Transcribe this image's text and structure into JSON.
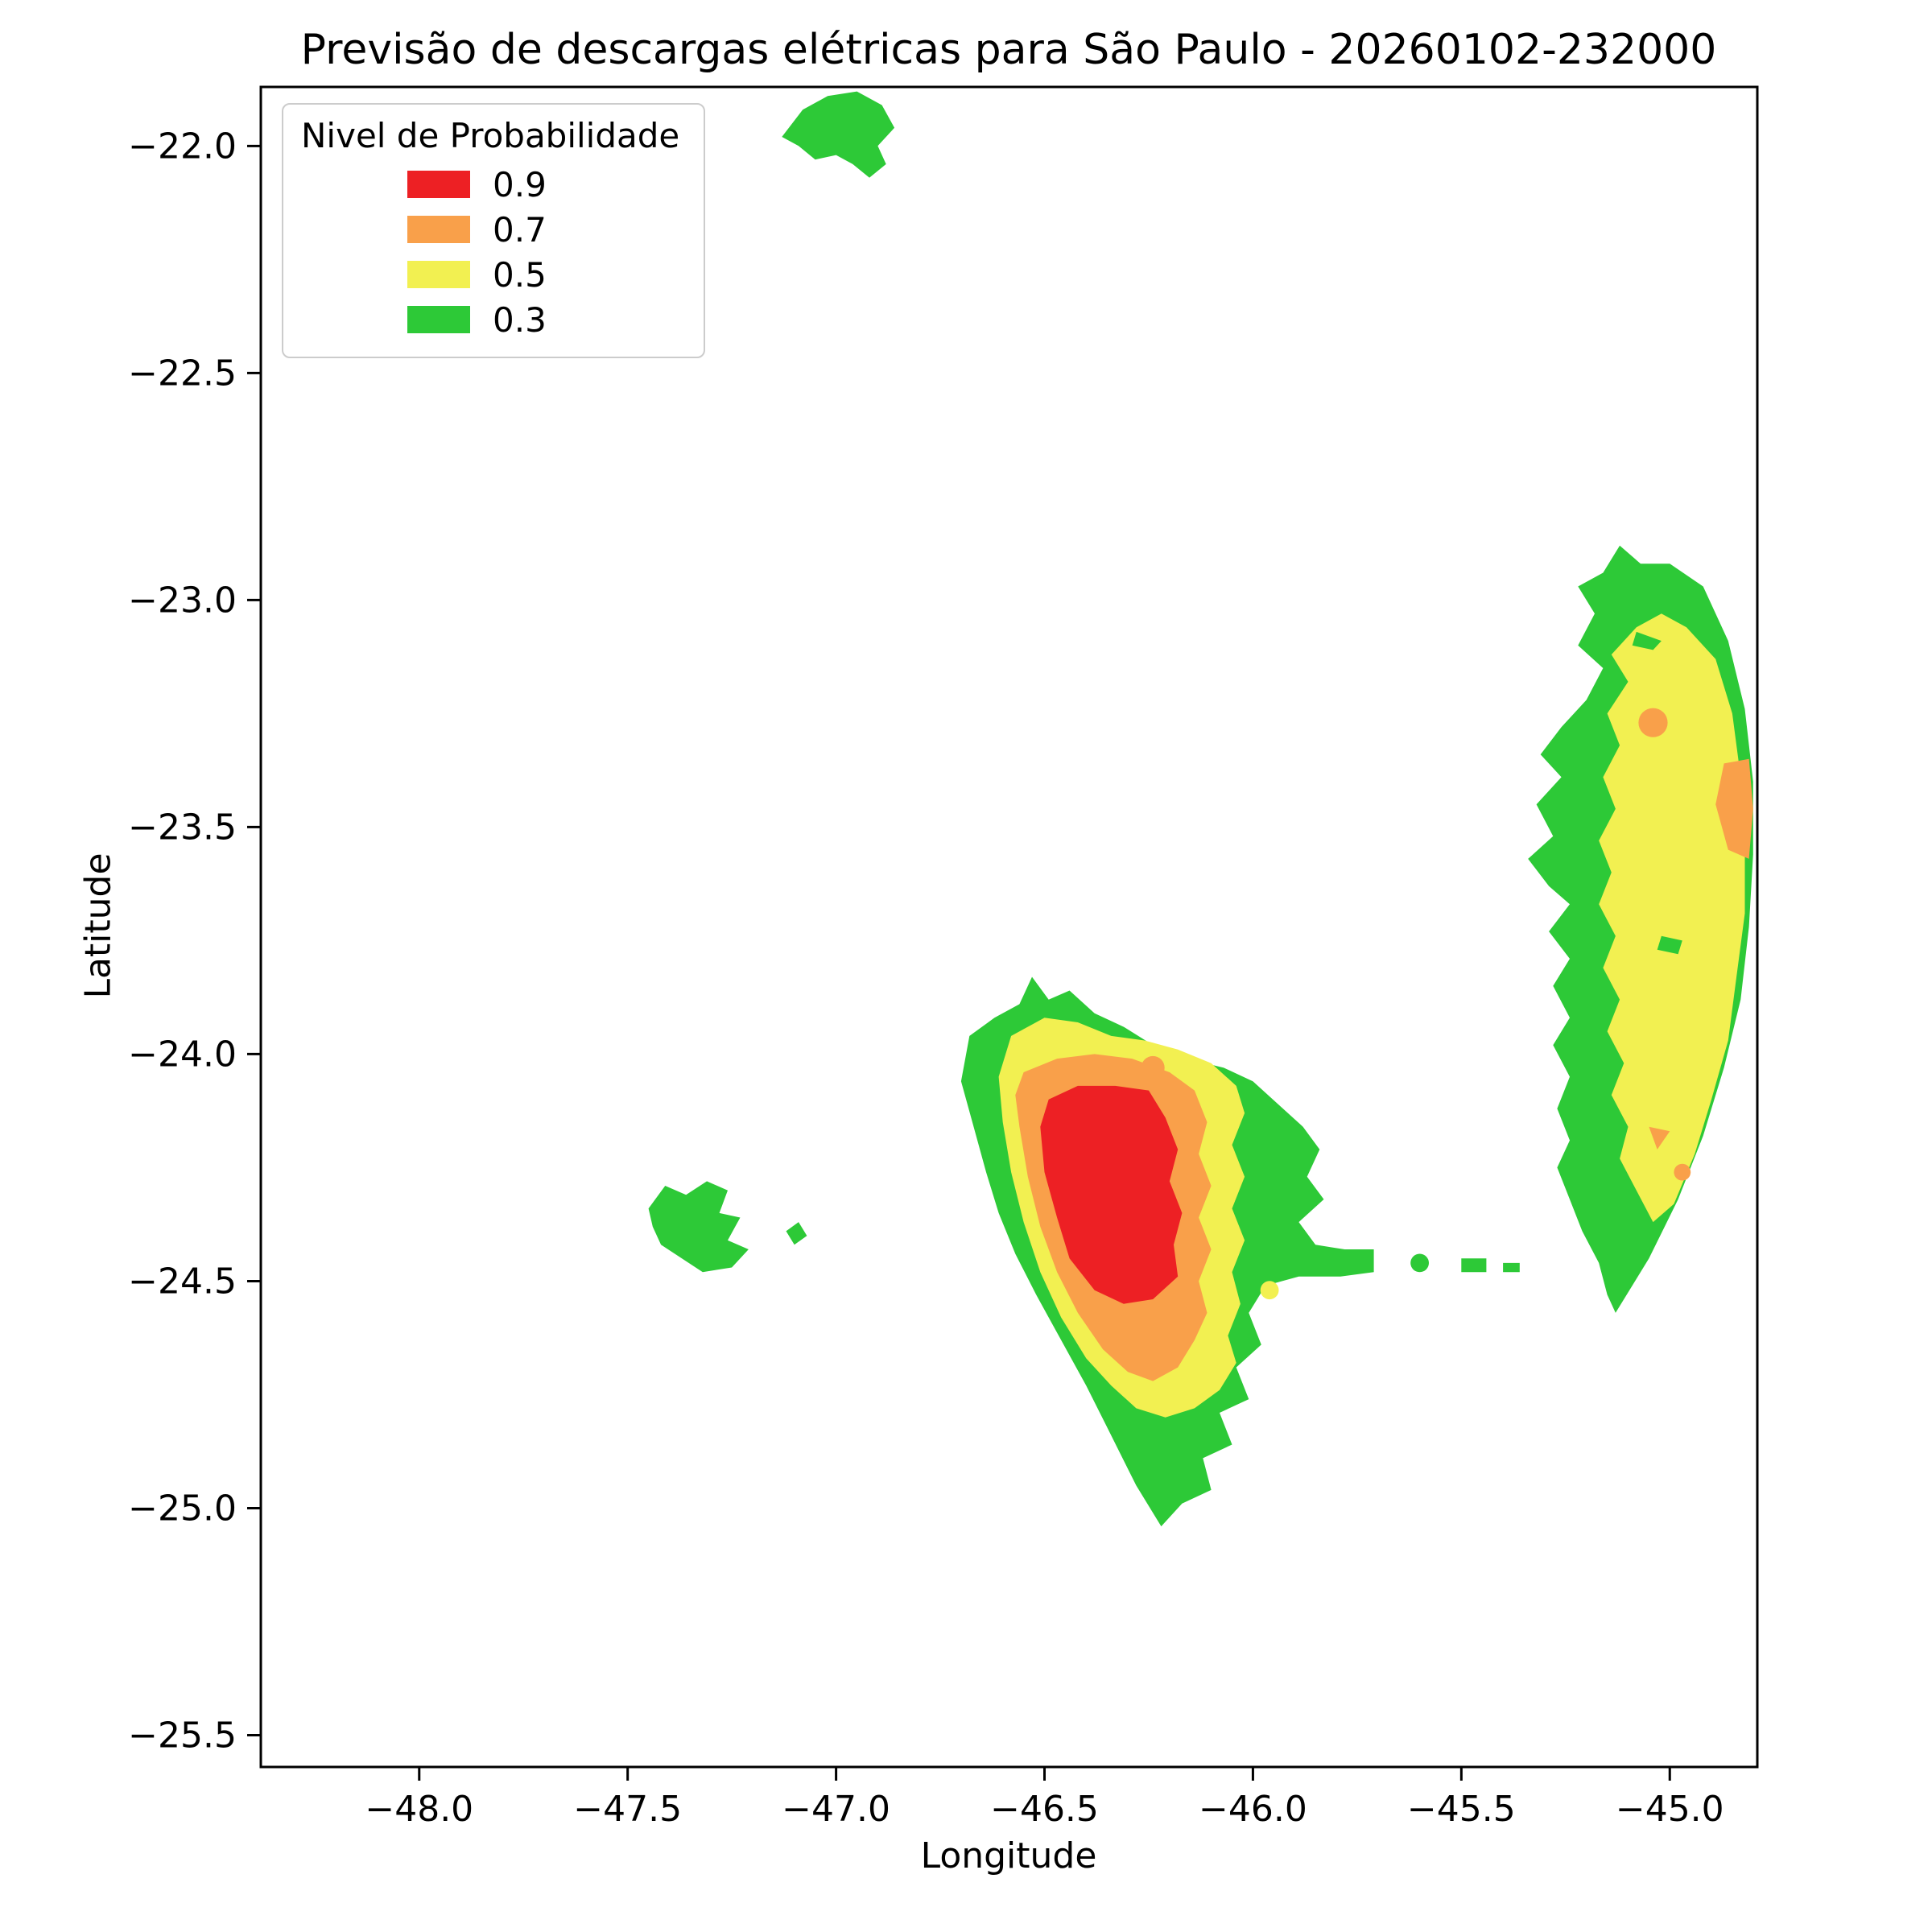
{
  "chart_data": {
    "type": "heatmap",
    "subtype": "filled_contour_map",
    "title": "Previsão de descargas elétricas para São Paulo - 20260102-232000",
    "xlabel": "Longitude",
    "ylabel": "Latitude",
    "xlim": [
      -48.38,
      -44.79
    ],
    "ylim": [
      -25.57,
      -21.87
    ],
    "grid": false,
    "x_ticks": {
      "values": [
        -48.0,
        -47.5,
        -47.0,
        -46.5,
        -46.0,
        -45.5,
        -45.0
      ],
      "labels": [
        "−48.0",
        "−47.5",
        "−47.0",
        "−46.5",
        "−46.0",
        "−45.5",
        "−45.0"
      ]
    },
    "y_ticks": {
      "values": [
        -22.0,
        -22.5,
        -23.0,
        -23.5,
        -24.0,
        -24.5,
        -25.0,
        -25.5
      ],
      "labels": [
        "−22.0",
        "−22.5",
        "−23.0",
        "−23.5",
        "−24.0",
        "−24.5",
        "−25.0",
        "−25.5"
      ]
    },
    "legend": {
      "title": "Nivel de Probabilidade",
      "position": "upper left",
      "items": [
        {
          "label": "0.9",
          "color": "#ed2024"
        },
        {
          "label": "0.7",
          "color": "#f9a04a"
        },
        {
          "label": "0.5",
          "color": "#f2f051"
        },
        {
          "label": "0.3",
          "color": "#2dc937"
        }
      ]
    },
    "probability_levels": [
      0.9,
      0.7,
      0.5,
      0.3
    ],
    "regions": [
      {
        "level": "0.3",
        "shape": "polygon",
        "points": [
          [
            -47.13,
            -21.98
          ],
          [
            -47.08,
            -21.92
          ],
          [
            -47.02,
            -21.89
          ],
          [
            -46.95,
            -21.88
          ],
          [
            -46.89,
            -21.91
          ],
          [
            -46.86,
            -21.96
          ],
          [
            -46.9,
            -22.0
          ],
          [
            -46.88,
            -22.04
          ],
          [
            -46.92,
            -22.07
          ],
          [
            -46.96,
            -22.04
          ],
          [
            -47.0,
            -22.02
          ],
          [
            -47.05,
            -22.03
          ],
          [
            -47.09,
            -22.0
          ]
        ]
      },
      {
        "level": "0.3",
        "shape": "polygon",
        "points": [
          [
            -47.45,
            -24.34
          ],
          [
            -47.41,
            -24.29
          ],
          [
            -47.36,
            -24.31
          ],
          [
            -47.31,
            -24.28
          ],
          [
            -47.26,
            -24.3
          ],
          [
            -47.28,
            -24.35
          ],
          [
            -47.23,
            -24.36
          ],
          [
            -47.26,
            -24.41
          ],
          [
            -47.21,
            -24.43
          ],
          [
            -47.25,
            -24.47
          ],
          [
            -47.32,
            -24.48
          ],
          [
            -47.37,
            -24.45
          ],
          [
            -47.42,
            -24.42
          ],
          [
            -47.44,
            -24.38
          ]
        ]
      },
      {
        "level": "0.3",
        "shape": "polygon",
        "points": [
          [
            -47.12,
            -24.39
          ],
          [
            -47.09,
            -24.37
          ],
          [
            -47.07,
            -24.4
          ],
          [
            -47.1,
            -24.42
          ]
        ]
      },
      {
        "level": "0.3",
        "shape": "polygon",
        "points": [
          [
            -46.68,
            -23.96
          ],
          [
            -46.62,
            -23.92
          ],
          [
            -46.56,
            -23.89
          ],
          [
            -46.53,
            -23.83
          ],
          [
            -46.49,
            -23.88
          ],
          [
            -46.44,
            -23.86
          ],
          [
            -46.38,
            -23.91
          ],
          [
            -46.31,
            -23.94
          ],
          [
            -46.24,
            -23.98
          ],
          [
            -46.16,
            -24.01
          ],
          [
            -46.07,
            -24.03
          ],
          [
            -46.0,
            -24.06
          ],
          [
            -45.94,
            -24.11
          ],
          [
            -45.88,
            -24.16
          ],
          [
            -45.84,
            -24.21
          ],
          [
            -45.87,
            -24.27
          ],
          [
            -45.83,
            -24.32
          ],
          [
            -45.89,
            -24.37
          ],
          [
            -45.85,
            -24.42
          ],
          [
            -45.78,
            -24.43
          ],
          [
            -45.71,
            -24.43
          ],
          [
            -45.71,
            -24.48
          ],
          [
            -45.79,
            -24.49
          ],
          [
            -45.89,
            -24.49
          ],
          [
            -45.97,
            -24.51
          ],
          [
            -46.01,
            -24.57
          ],
          [
            -45.98,
            -24.64
          ],
          [
            -46.04,
            -24.69
          ],
          [
            -46.01,
            -24.76
          ],
          [
            -46.08,
            -24.79
          ],
          [
            -46.05,
            -24.86
          ],
          [
            -46.12,
            -24.89
          ],
          [
            -46.1,
            -24.96
          ],
          [
            -46.17,
            -24.99
          ],
          [
            -46.22,
            -25.04
          ],
          [
            -46.28,
            -24.95
          ],
          [
            -46.34,
            -24.84
          ],
          [
            -46.4,
            -24.73
          ],
          [
            -46.46,
            -24.63
          ],
          [
            -46.52,
            -24.53
          ],
          [
            -46.57,
            -24.44
          ],
          [
            -46.61,
            -24.35
          ],
          [
            -46.64,
            -24.26
          ],
          [
            -46.67,
            -24.16
          ],
          [
            -46.7,
            -24.06
          ]
        ]
      },
      {
        "level": "0.3",
        "shape": "circle",
        "center": [
          -45.6,
          -24.46
        ],
        "r": 0.022
      },
      {
        "level": "0.3",
        "shape": "polygon",
        "points": [
          [
            -45.5,
            -24.45
          ],
          [
            -45.44,
            -24.45
          ],
          [
            -45.44,
            -24.48
          ],
          [
            -45.5,
            -24.48
          ]
        ]
      },
      {
        "level": "0.3",
        "shape": "polygon",
        "points": [
          [
            -45.4,
            -24.46
          ],
          [
            -45.36,
            -24.46
          ],
          [
            -45.36,
            -24.48
          ],
          [
            -45.4,
            -24.48
          ]
        ]
      },
      {
        "level": "0.3",
        "shape": "polygon",
        "points": [
          [
            -45.12,
            -22.88
          ],
          [
            -45.16,
            -22.94
          ],
          [
            -45.22,
            -22.97
          ],
          [
            -45.18,
            -23.03
          ],
          [
            -45.22,
            -23.1
          ],
          [
            -45.16,
            -23.15
          ],
          [
            -45.2,
            -23.22
          ],
          [
            -45.26,
            -23.28
          ],
          [
            -45.31,
            -23.34
          ],
          [
            -45.26,
            -23.39
          ],
          [
            -45.32,
            -23.45
          ],
          [
            -45.28,
            -23.52
          ],
          [
            -45.34,
            -23.57
          ],
          [
            -45.29,
            -23.63
          ],
          [
            -45.24,
            -23.67
          ],
          [
            -45.29,
            -23.73
          ],
          [
            -45.24,
            -23.79
          ],
          [
            -45.28,
            -23.85
          ],
          [
            -45.24,
            -23.92
          ],
          [
            -45.28,
            -23.98
          ],
          [
            -45.24,
            -24.05
          ],
          [
            -45.27,
            -24.12
          ],
          [
            -45.24,
            -24.19
          ],
          [
            -45.27,
            -24.25
          ],
          [
            -45.24,
            -24.32
          ],
          [
            -45.21,
            -24.39
          ],
          [
            -45.17,
            -24.46
          ],
          [
            -45.15,
            -24.53
          ],
          [
            -45.13,
            -24.57
          ],
          [
            -45.05,
            -24.45
          ],
          [
            -44.98,
            -24.32
          ],
          [
            -44.92,
            -24.18
          ],
          [
            -44.87,
            -24.03
          ],
          [
            -44.83,
            -23.88
          ],
          [
            -44.81,
            -23.72
          ],
          [
            -44.8,
            -23.56
          ],
          [
            -44.8,
            -23.4
          ],
          [
            -44.82,
            -23.24
          ],
          [
            -44.86,
            -23.09
          ],
          [
            -44.92,
            -22.97
          ],
          [
            -45.0,
            -22.92
          ],
          [
            -45.07,
            -22.92
          ]
        ]
      },
      {
        "level": "0.5",
        "shape": "polygon",
        "points": [
          [
            -46.58,
            -23.96
          ],
          [
            -46.5,
            -23.92
          ],
          [
            -46.42,
            -23.93
          ],
          [
            -46.34,
            -23.96
          ],
          [
            -46.26,
            -23.97
          ],
          [
            -46.18,
            -23.99
          ],
          [
            -46.1,
            -24.02
          ],
          [
            -46.04,
            -24.07
          ],
          [
            -46.02,
            -24.13
          ],
          [
            -46.05,
            -24.2
          ],
          [
            -46.02,
            -24.27
          ],
          [
            -46.05,
            -24.34
          ],
          [
            -46.02,
            -24.41
          ],
          [
            -46.05,
            -24.48
          ],
          [
            -46.03,
            -24.55
          ],
          [
            -46.06,
            -24.62
          ],
          [
            -46.04,
            -24.68
          ],
          [
            -46.08,
            -24.74
          ],
          [
            -46.14,
            -24.78
          ],
          [
            -46.21,
            -24.8
          ],
          [
            -46.28,
            -24.78
          ],
          [
            -46.34,
            -24.73
          ],
          [
            -46.4,
            -24.67
          ],
          [
            -46.46,
            -24.58
          ],
          [
            -46.51,
            -24.48
          ],
          [
            -46.55,
            -24.37
          ],
          [
            -46.58,
            -24.26
          ],
          [
            -46.6,
            -24.15
          ],
          [
            -46.61,
            -24.05
          ]
        ]
      },
      {
        "level": "0.5",
        "shape": "circle",
        "center": [
          -45.96,
          -24.52
        ],
        "r": 0.022
      },
      {
        "level": "0.5",
        "shape": "polygon",
        "points": [
          [
            -45.08,
            -23.06
          ],
          [
            -45.14,
            -23.12
          ],
          [
            -45.1,
            -23.18
          ],
          [
            -45.15,
            -23.25
          ],
          [
            -45.12,
            -23.32
          ],
          [
            -45.16,
            -23.39
          ],
          [
            -45.13,
            -23.46
          ],
          [
            -45.17,
            -23.53
          ],
          [
            -45.14,
            -23.6
          ],
          [
            -45.17,
            -23.67
          ],
          [
            -45.13,
            -23.74
          ],
          [
            -45.16,
            -23.81
          ],
          [
            -45.12,
            -23.88
          ],
          [
            -45.15,
            -23.95
          ],
          [
            -45.11,
            -24.02
          ],
          [
            -45.14,
            -24.09
          ],
          [
            -45.1,
            -24.16
          ],
          [
            -45.12,
            -24.23
          ],
          [
            -45.08,
            -24.3
          ],
          [
            -45.04,
            -24.37
          ],
          [
            -44.99,
            -24.33
          ],
          [
            -44.94,
            -24.22
          ],
          [
            -44.9,
            -24.1
          ],
          [
            -44.86,
            -23.97
          ],
          [
            -44.84,
            -23.83
          ],
          [
            -44.82,
            -23.69
          ],
          [
            -44.82,
            -23.54
          ],
          [
            -44.83,
            -23.39
          ],
          [
            -44.85,
            -23.25
          ],
          [
            -44.89,
            -23.13
          ],
          [
            -44.96,
            -23.06
          ],
          [
            -45.02,
            -23.03
          ]
        ]
      },
      {
        "level": "0.7",
        "shape": "polygon",
        "points": [
          [
            -46.55,
            -24.04
          ],
          [
            -46.47,
            -24.01
          ],
          [
            -46.38,
            -24.0
          ],
          [
            -46.29,
            -24.01
          ],
          [
            -46.2,
            -24.04
          ],
          [
            -46.14,
            -24.08
          ],
          [
            -46.11,
            -24.15
          ],
          [
            -46.13,
            -24.22
          ],
          [
            -46.1,
            -24.29
          ],
          [
            -46.13,
            -24.36
          ],
          [
            -46.1,
            -24.43
          ],
          [
            -46.13,
            -24.5
          ],
          [
            -46.11,
            -24.57
          ],
          [
            -46.14,
            -24.63
          ],
          [
            -46.18,
            -24.69
          ],
          [
            -46.24,
            -24.72
          ],
          [
            -46.3,
            -24.7
          ],
          [
            -46.36,
            -24.65
          ],
          [
            -46.42,
            -24.57
          ],
          [
            -46.47,
            -24.48
          ],
          [
            -46.51,
            -24.38
          ],
          [
            -46.54,
            -24.27
          ],
          [
            -46.56,
            -24.16
          ],
          [
            -46.57,
            -24.09
          ]
        ]
      },
      {
        "level": "0.7",
        "shape": "circle",
        "center": [
          -46.24,
          -24.03
        ],
        "r": 0.028
      },
      {
        "level": "0.7",
        "shape": "circle",
        "center": [
          -45.04,
          -23.27
        ],
        "r": 0.035
      },
      {
        "level": "0.7",
        "shape": "polygon",
        "points": [
          [
            -44.87,
            -23.36
          ],
          [
            -44.81,
            -23.35
          ],
          [
            -44.8,
            -23.46
          ],
          [
            -44.81,
            -23.57
          ],
          [
            -44.86,
            -23.55
          ],
          [
            -44.89,
            -23.45
          ]
        ]
      },
      {
        "level": "0.7",
        "shape": "polygon",
        "points": [
          [
            -45.05,
            -24.16
          ],
          [
            -45.0,
            -24.17
          ],
          [
            -45.03,
            -24.21
          ]
        ]
      },
      {
        "level": "0.7",
        "shape": "circle",
        "center": [
          -44.97,
          -24.26
        ],
        "r": 0.02
      },
      {
        "level": "0.9",
        "shape": "polygon",
        "points": [
          [
            -46.49,
            -24.1
          ],
          [
            -46.42,
            -24.07
          ],
          [
            -46.33,
            -24.07
          ],
          [
            -46.25,
            -24.08
          ],
          [
            -46.21,
            -24.14
          ],
          [
            -46.18,
            -24.21
          ],
          [
            -46.2,
            -24.28
          ],
          [
            -46.17,
            -24.35
          ],
          [
            -46.19,
            -24.42
          ],
          [
            -46.18,
            -24.49
          ],
          [
            -46.24,
            -24.54
          ],
          [
            -46.31,
            -24.55
          ],
          [
            -46.38,
            -24.52
          ],
          [
            -46.44,
            -24.45
          ],
          [
            -46.47,
            -24.36
          ],
          [
            -46.5,
            -24.26
          ],
          [
            -46.51,
            -24.16
          ]
        ]
      },
      {
        "level": "0.3",
        "shape": "polygon",
        "points": [
          [
            -45.08,
            -23.07
          ],
          [
            -45.02,
            -23.09
          ],
          [
            -45.04,
            -23.11
          ],
          [
            -45.09,
            -23.1
          ]
        ]
      },
      {
        "level": "0.3",
        "shape": "polygon",
        "points": [
          [
            -45.02,
            -23.74
          ],
          [
            -44.97,
            -23.75
          ],
          [
            -44.98,
            -23.78
          ],
          [
            -45.03,
            -23.77
          ]
        ]
      }
    ]
  }
}
